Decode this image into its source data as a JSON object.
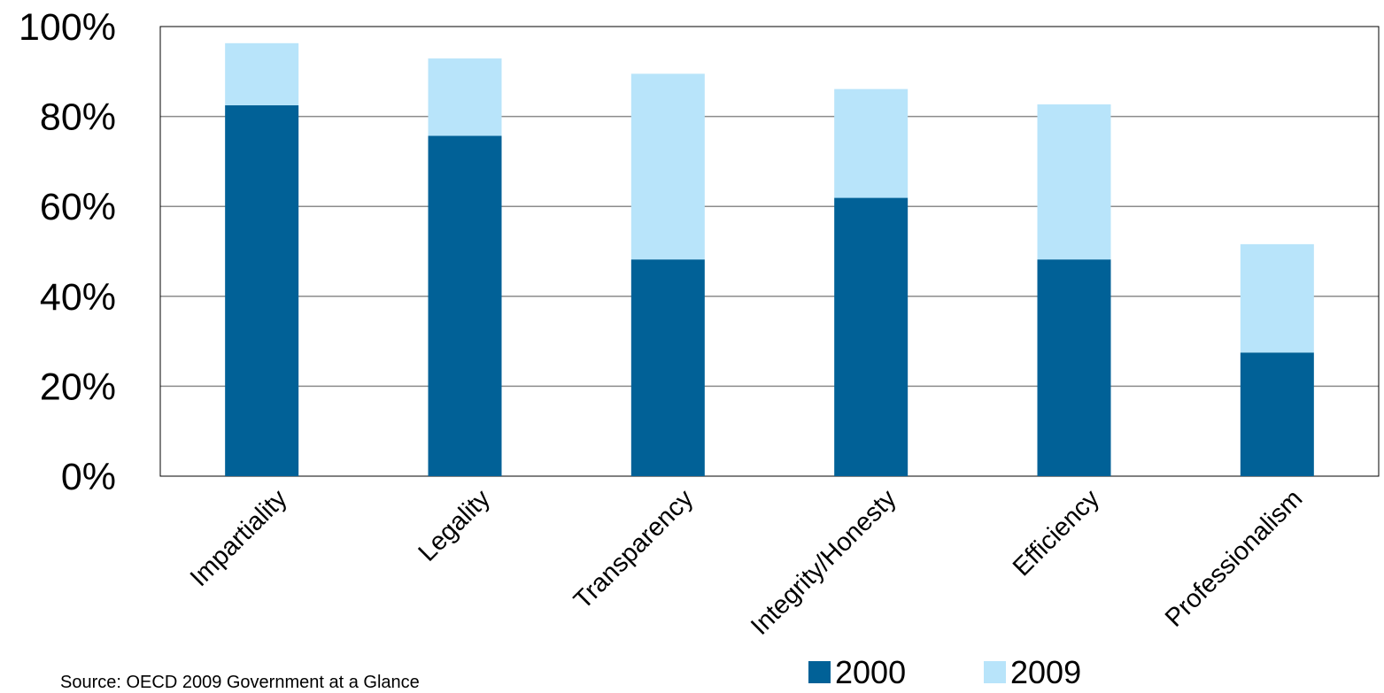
{
  "chart_data": {
    "type": "bar",
    "stacked": true,
    "title": "",
    "xlabel": "",
    "ylabel": "",
    "ylim": [
      0,
      100
    ],
    "yticks": [
      0,
      20,
      40,
      60,
      80,
      100
    ],
    "ytick_labels": [
      "0%",
      "20%",
      "40%",
      "60%",
      "80%",
      "100%"
    ],
    "grid": true,
    "legend_position": "bottom-right",
    "categories": [
      "Impartiality",
      "Legality",
      "Transparency",
      "Integrity/Honesty",
      "Efficiency",
      "Professionalism"
    ],
    "series": [
      {
        "name": "2000",
        "color": "#016197",
        "values": [
          82.5,
          75.7,
          48.2,
          61.9,
          48.2,
          27.5
        ]
      },
      {
        "name": "2009",
        "color": "#b8e4fa",
        "values": [
          13.8,
          17.2,
          41.3,
          24.2,
          34.5,
          24.1
        ]
      }
    ]
  },
  "source": "Source: OECD 2009 Government at a Glance"
}
